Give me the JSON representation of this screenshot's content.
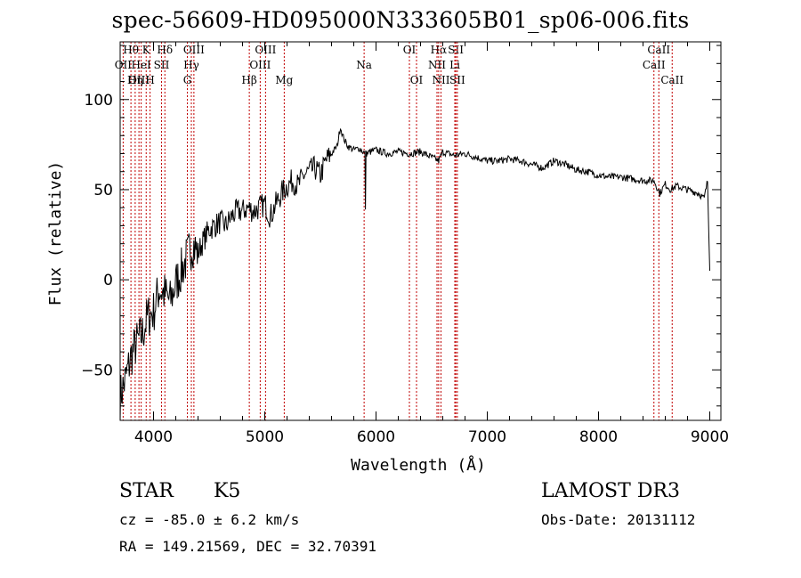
{
  "chart_data": {
    "type": "line",
    "title": "spec-56609-HD095000N333605B01_sp06-006.fits",
    "xlabel": "Wavelength (Å)",
    "ylabel": "Flux (relative)",
    "xlim": [
      3700,
      9100
    ],
    "ylim": [
      -78,
      132
    ],
    "xticks": [
      4000,
      5000,
      6000,
      7000,
      8000,
      9000
    ],
    "yticks": [
      -50,
      0,
      50,
      100
    ],
    "series": [
      {
        "name": "spectrum",
        "x": [
          3700,
          3750,
          3800,
          3850,
          3900,
          3950,
          4000,
          4050,
          4100,
          4150,
          4200,
          4250,
          4300,
          4350,
          4400,
          4450,
          4500,
          4550,
          4600,
          4650,
          4700,
          4750,
          4800,
          4850,
          4900,
          4950,
          5000,
          5050,
          5100,
          5150,
          5200,
          5250,
          5300,
          5350,
          5400,
          5450,
          5500,
          5550,
          5600,
          5650,
          5680,
          5700,
          5720,
          5750,
          5800,
          5850,
          5900,
          5905,
          5910,
          5950,
          6000,
          6100,
          6200,
          6300,
          6400,
          6500,
          6563,
          6600,
          6700,
          6800,
          6900,
          7000,
          7100,
          7200,
          7300,
          7400,
          7500,
          7600,
          7700,
          7800,
          7900,
          8000,
          8100,
          8200,
          8300,
          8400,
          8500,
          8550,
          8600,
          8650,
          8700,
          8800,
          8900,
          8950,
          8980,
          9000
        ],
        "values": [
          -65,
          -55,
          -42,
          -35,
          -30,
          -20,
          -18,
          -5,
          -8,
          -12,
          -2,
          5,
          12,
          20,
          15,
          22,
          28,
          30,
          32,
          30,
          35,
          38,
          38,
          40,
          38,
          40,
          42,
          35,
          42,
          48,
          52,
          55,
          52,
          58,
          60,
          62,
          58,
          66,
          70,
          74,
          85,
          80,
          77,
          74,
          72,
          73,
          70,
          40,
          70,
          71,
          72,
          70,
          71,
          70,
          71,
          68,
          66,
          71,
          69,
          70,
          68,
          66,
          66,
          67,
          66,
          64,
          62,
          66,
          64,
          61,
          60,
          58,
          57,
          57,
          56,
          55,
          55,
          48,
          53,
          50,
          52,
          50,
          48,
          45,
          55,
          5
        ]
      }
    ],
    "emission_lines": [
      {
        "label": "Hθ",
        "wavelength": 3797,
        "row": 1
      },
      {
        "label": "OII",
        "wavelength": 3727,
        "row": 2
      },
      {
        "label": "OIII",
        "wavelength": 3869,
        "row": 3
      },
      {
        "label": "K",
        "wavelength": 3934,
        "row": 1
      },
      {
        "label": "HeI",
        "wavelength": 3889,
        "row": 2
      },
      {
        "label": "Hη",
        "wavelength": 3835,
        "row": 3
      },
      {
        "label": "H",
        "wavelength": 3969,
        "row": 3
      },
      {
        "label": "SII",
        "wavelength": 4072,
        "row": 2
      },
      {
        "label": "Hδ",
        "wavelength": 4102,
        "row": 1
      },
      {
        "label": "OIII",
        "wavelength": 4363,
        "row": 1
      },
      {
        "label": "Hγ",
        "wavelength": 4340,
        "row": 2
      },
      {
        "label": "G",
        "wavelength": 4304,
        "row": 3
      },
      {
        "label": "Hβ",
        "wavelength": 4861,
        "row": 3
      },
      {
        "label": "OIII",
        "wavelength": 5007,
        "row": 1
      },
      {
        "label": "OIII",
        "wavelength": 4959,
        "row": 2
      },
      {
        "label": "Mg",
        "wavelength": 5175,
        "row": 3
      },
      {
        "label": "Na",
        "wavelength": 5893,
        "row": 2
      },
      {
        "label": "OI",
        "wavelength": 6300,
        "row": 1
      },
      {
        "label": "OI",
        "wavelength": 6364,
        "row": 3
      },
      {
        "label": "Hα",
        "wavelength": 6563,
        "row": 1
      },
      {
        "label": "NII",
        "wavelength": 6548,
        "row": 2
      },
      {
        "label": "NII",
        "wavelength": 6584,
        "row": 3
      },
      {
        "label": "SII",
        "wavelength": 6717,
        "row": 1
      },
      {
        "label": "Li",
        "wavelength": 6708,
        "row": 2
      },
      {
        "label": "SII",
        "wavelength": 6731,
        "row": 3
      },
      {
        "label": "CaII",
        "wavelength": 8542,
        "row": 1
      },
      {
        "label": "CaII",
        "wavelength": 8498,
        "row": 2
      },
      {
        "label": "CaII",
        "wavelength": 8662,
        "row": 3
      }
    ]
  },
  "info": {
    "object_class": "STAR",
    "subclass": "K5",
    "survey": "LAMOST DR3",
    "redshift": "cz = -85.0 ± 6.2 km/s",
    "obs_date": "Obs-Date: 20131112",
    "coords": "RA = 149.21569, DEC =  32.70391"
  },
  "colors": {
    "line": "#000000",
    "marker": "#c00000",
    "axes": "#000000"
  }
}
